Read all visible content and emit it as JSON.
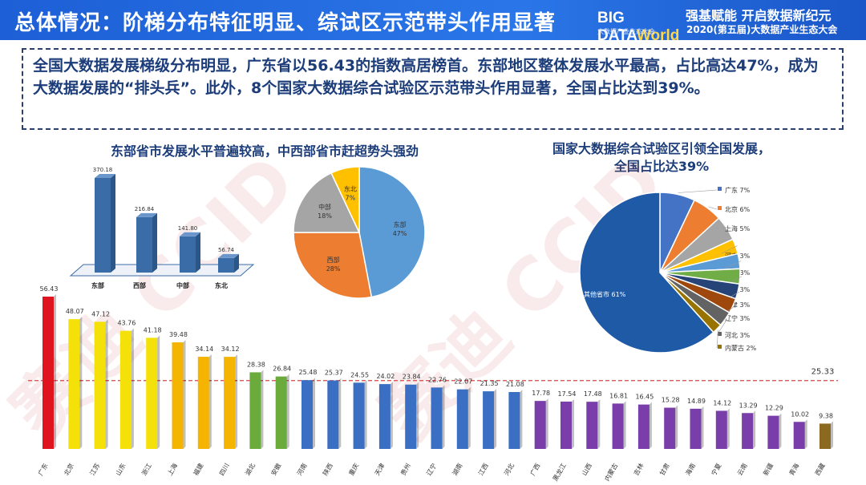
{
  "header": {
    "title": "总体情况：阶梯分布特征明显、综试区示范带头作用显著",
    "logo_text": "BIG DATA",
    "logo_world": "World",
    "logo_sub": "大数据产业生态大会",
    "slogan": "强基赋能 开启数据新纪元",
    "event": "2020(第五届)大数据产业生态大会"
  },
  "summary": "全国大数据发展梯级分布明显，广东省以56.43的指数高居榜首。东部地区整体发展水平最高，占比高达47%，成为大数据发展的“排头兵”。此外，8个国家大数据综合试验区示范带头作用显著，全国占比达到39%。",
  "subtitles": {
    "left": "东部省市发展水平普遍较高，中西部省市赶超势头强劲",
    "right_line1": "国家大数据综合试验区引领全国发展，",
    "right_line2": "全国占比达39%"
  },
  "watermark": "赛迪 CCID",
  "colors": {
    "red": "#e0141e",
    "yellow": "#f5e10a",
    "orange": "#f4b400",
    "green": "#6aab3c",
    "blue": "#3a6fc4",
    "purple": "#7a3eaa",
    "brown": "#8b6a1f",
    "region_bar": "#3a6ca8",
    "avg_line": "#e24040"
  },
  "chart_data": [
    {
      "type": "bar",
      "categories": [
        "东部",
        "西部",
        "中部",
        "东北"
      ],
      "values": [
        370.18,
        216.84,
        141.8,
        56.74
      ]
    },
    {
      "type": "pie",
      "labels": [
        "东部",
        "西部",
        "中部",
        "东北"
      ],
      "values": [
        47,
        28,
        18,
        7
      ],
      "display": [
        "47%",
        "28%",
        "18%",
        "7%"
      ],
      "colors": [
        "#5b9bd5",
        "#ed7d31",
        "#a5a5a5",
        "#ffc000"
      ]
    },
    {
      "type": "pie",
      "labels": [
        "广东",
        "北京",
        "上海",
        "河南",
        "重庆",
        "贵州",
        "天津",
        "辽宁",
        "河北",
        "内蒙古",
        "其他省市"
      ],
      "values": [
        7,
        6,
        5,
        3,
        3,
        3,
        3,
        3,
        3,
        2,
        61
      ],
      "display": [
        "7%",
        "6%",
        "5%",
        "3%",
        "3%",
        "3%",
        "3%",
        "3%",
        "3%",
        "2%",
        "61%"
      ],
      "colors": [
        "#4472c4",
        "#ed7d31",
        "#a5a5a5",
        "#ffc000",
        "#5b9bd5",
        "#70ad47",
        "#264478",
        "#9e480e",
        "#636363",
        "#997300",
        "#1f5aa6"
      ]
    },
    {
      "type": "bar",
      "categories": [
        "广东",
        "北京",
        "江苏",
        "山东",
        "浙江",
        "上海",
        "福建",
        "四川",
        "湖北",
        "安徽",
        "河南",
        "陕西",
        "重庆",
        "天津",
        "贵州",
        "辽宁",
        "湖南",
        "江西",
        "河北",
        "广西",
        "黑龙江",
        "山西",
        "内蒙古",
        "吉林",
        "甘肃",
        "海南",
        "宁夏",
        "云南",
        "新疆",
        "青海",
        "西藏"
      ],
      "values": [
        56.43,
        48.07,
        47.12,
        43.76,
        41.18,
        39.48,
        34.14,
        34.12,
        28.38,
        26.84,
        25.48,
        25.37,
        24.55,
        24.02,
        23.84,
        22.76,
        22.07,
        21.35,
        21.08,
        17.78,
        17.54,
        17.48,
        16.81,
        16.45,
        15.28,
        14.89,
        14.12,
        13.29,
        12.29,
        10.02,
        9.38
      ],
      "display": [
        "56.43",
        "48.07",
        "47.12",
        "43.76",
        "41.18",
        "39.48",
        "34.14",
        "34.12",
        "28.38",
        "26.84",
        "25.48",
        "25.37",
        "24.55",
        "24.02",
        "23.84",
        "22.76",
        "22.07",
        "21.35",
        "21.08",
        "17.78",
        "17.54",
        "17.48",
        "16.81",
        "16.45",
        "15.28",
        "14.89",
        "14.12",
        "13.29",
        "12.29",
        "10.02",
        "9.38"
      ],
      "color_groups": [
        "red",
        "yellow",
        "yellow",
        "yellow",
        "yellow",
        "orange",
        "orange",
        "orange",
        "green",
        "green",
        "blue",
        "blue",
        "blue",
        "blue",
        "blue",
        "blue",
        "blue",
        "blue",
        "blue",
        "purple",
        "purple",
        "purple",
        "purple",
        "purple",
        "purple",
        "purple",
        "purple",
        "purple",
        "purple",
        "purple",
        "brown"
      ],
      "average": 25.33,
      "average_label": "25.33"
    }
  ]
}
